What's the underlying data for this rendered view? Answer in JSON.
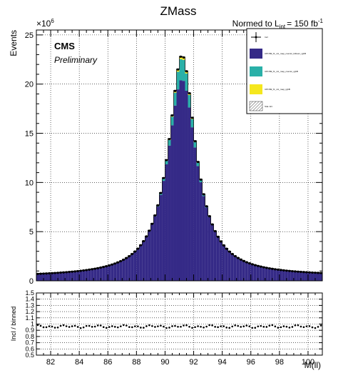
{
  "chart_data": [
    {
      "type": "bar",
      "title": "ZMass",
      "lumi_label": "Normed to L",
      "lumi_subscript": "int",
      "lumi_value": "= 150 fb",
      "lumi_exponent": "-1",
      "cms_label": "CMS",
      "preliminary_label": "Preliminary",
      "ylabel": "Events",
      "y_exponent": "×10",
      "y_exponent_power": "6",
      "xlim": [
        81,
        101
      ],
      "ylim": [
        0,
        25.5
      ],
      "y_scale_factor": 1000000,
      "grid": true,
      "stacked": true,
      "legend_position": "top-right",
      "x_tick_labels": [
        "82",
        "84",
        "86",
        "88",
        "90",
        "92",
        "94",
        "96",
        "98",
        "100"
      ],
      "y_tick_labels": [
        "0",
        "5",
        "10",
        "15",
        "20",
        "25"
      ],
      "legend": [
        {
          "label": "Incl",
          "style": "marker",
          "color": "#000000"
        },
        {
          "label": "CPI=B2_f1_ntc_map_cosmic_fullsum_rgbB",
          "style": "fill",
          "color": "#352a87"
        },
        {
          "label": "CPI=B2_f1_ntc_map_cosmic_rgbB",
          "style": "fill",
          "color": "#2ab0a8"
        },
        {
          "label": "CPI=B2_f1_ntc_map_rgbB",
          "style": "fill",
          "color": "#f5e71e"
        },
        {
          "label": "Stat. Err.",
          "style": "hatch",
          "color": "#555555"
        }
      ],
      "peak": {
        "mass": 91.19,
        "height": 20.0,
        "yellow_peak": 0.3,
        "teal_peak": 2.2
      },
      "background_level": 0.45
    },
    {
      "type": "scatter",
      "ylabel": "Incl / binned",
      "xlabel": "M(ll)",
      "xlim": [
        81,
        101
      ],
      "ylim": [
        0.5,
        1.5
      ],
      "grid": true,
      "y_tick_labels": [
        "0.5",
        "0.6",
        "0.7",
        "0.8",
        "0.9",
        "1",
        "1.1",
        "1.2",
        "1.3",
        "1.4",
        "1.5"
      ],
      "ratio_level": 0.96
    }
  ]
}
